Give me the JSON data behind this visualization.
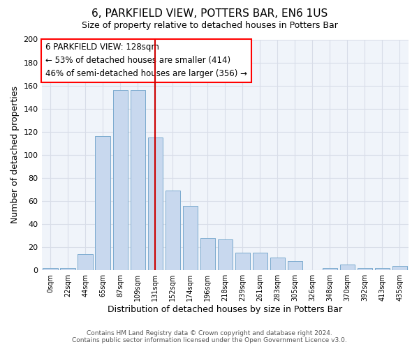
{
  "title": "6, PARKFIELD VIEW, POTTERS BAR, EN6 1US",
  "subtitle": "Size of property relative to detached houses in Potters Bar",
  "xlabel": "Distribution of detached houses by size in Potters Bar",
  "ylabel": "Number of detached properties",
  "bar_color": "#c8d8ee",
  "bar_edge_color": "#7aaace",
  "background_color": "#ffffff",
  "plot_bg_color": "#f0f4fa",
  "grid_color": "#d8dde8",
  "vline_color": "#cc0000",
  "categories": [
    "0sqm",
    "22sqm",
    "44sqm",
    "65sqm",
    "87sqm",
    "109sqm",
    "131sqm",
    "152sqm",
    "174sqm",
    "196sqm",
    "218sqm",
    "239sqm",
    "261sqm",
    "283sqm",
    "305sqm",
    "326sqm",
    "348sqm",
    "370sqm",
    "392sqm",
    "413sqm",
    "435sqm"
  ],
  "values": [
    2,
    2,
    14,
    116,
    156,
    156,
    115,
    69,
    56,
    28,
    27,
    15,
    15,
    11,
    8,
    0,
    2,
    5,
    2,
    2,
    4
  ],
  "ylim": [
    0,
    200
  ],
  "yticks": [
    0,
    20,
    40,
    60,
    80,
    100,
    120,
    140,
    160,
    180,
    200
  ],
  "annotation_box_text": "6 PARKFIELD VIEW: 128sqm\n← 53% of detached houses are smaller (414)\n46% of semi-detached houses are larger (356) →",
  "vline_bar_index": 6,
  "footer_line1": "Contains HM Land Registry data © Crown copyright and database right 2024.",
  "footer_line2": "Contains public sector information licensed under the Open Government Licence v3.0."
}
